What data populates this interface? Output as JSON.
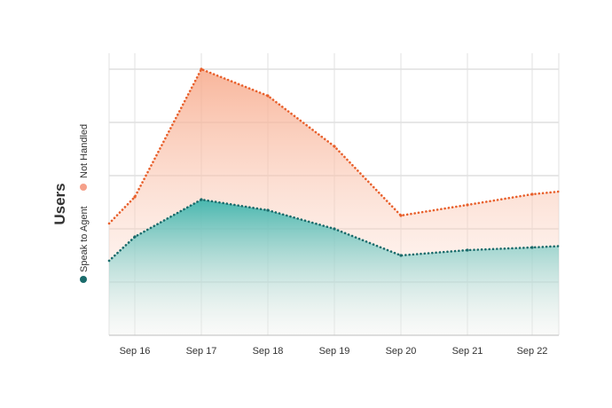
{
  "chart_data": {
    "type": "area",
    "ylabel": "Users",
    "xlabel": "",
    "x": [
      "Sep 15.5",
      "Sep 16",
      "Sep 17",
      "Sep 18",
      "Sep 19",
      "Sep 20",
      "Sep 21",
      "Sep 22",
      "Sep 22.4"
    ],
    "categories": [
      "Sep 16",
      "Sep 17",
      "Sep 18",
      "Sep 19",
      "Sep 20",
      "Sep 21",
      "Sep 22"
    ],
    "grid": true,
    "legend_placement": "left",
    "y_tick_labels_shown": false,
    "series": [
      {
        "name": "Not Handled",
        "color": "#e8602c",
        "fill": "#f7a98a",
        "values": [
          52,
          100,
          90,
          71,
          45,
          49,
          53
        ]
      },
      {
        "name": "Speak to Agent",
        "color": "#1a6b6b",
        "fill": "#3fb5ad",
        "values": [
          37,
          51,
          47,
          40,
          30,
          32,
          33
        ]
      }
    ],
    "edge_values": {
      "Not Handled": {
        "left": 42,
        "right": 54
      },
      "Speak to Agent": {
        "left": 28,
        "right": 33.5
      }
    },
    "ylim": [
      0,
      100
    ]
  }
}
